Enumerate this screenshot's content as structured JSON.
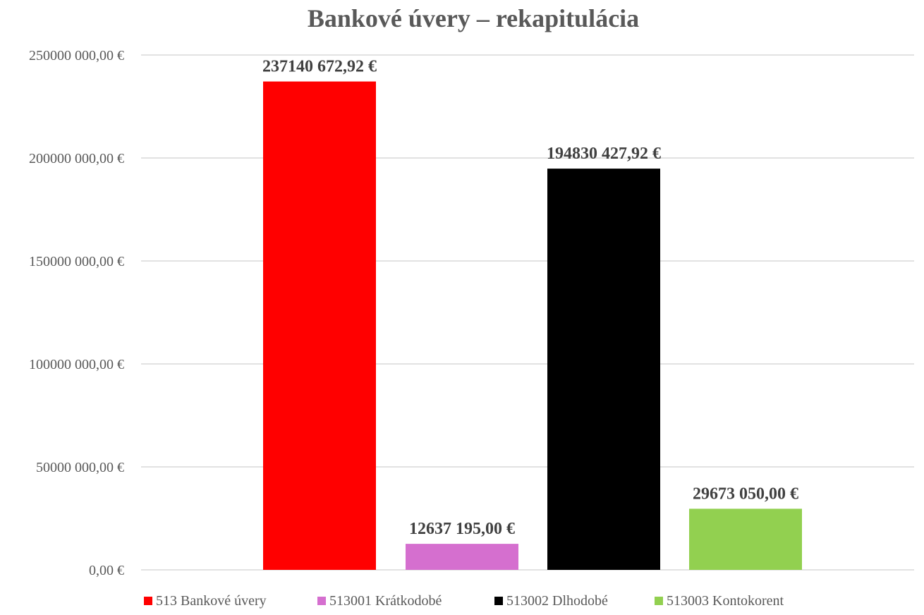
{
  "chart_data": {
    "type": "bar",
    "title": "Bankové úvery – rekapitulácia",
    "xlabel": "",
    "ylabel": "",
    "ylim": [
      0,
      250000000
    ],
    "yticks": [
      0,
      50000000,
      100000000,
      150000000,
      200000000,
      250000000
    ],
    "ytick_labels": [
      "0,00 €",
      "50000 000,00 €",
      "100000 000,00 €",
      "150000 000,00 €",
      "200000 000,00 €",
      "250000 000,00 €"
    ],
    "grid": true,
    "legend_position": "bottom",
    "series": [
      {
        "name": "513 Bankové úvery",
        "value": 237140672.92,
        "label": "237140 672,92 €",
        "color": "#ff0000"
      },
      {
        "name": "513001 Krátkodobé",
        "value": 12637195.0,
        "label": "12637 195,00 €",
        "color": "#d56fcf"
      },
      {
        "name": "513002 Dlhodobé",
        "value": 194830427.92,
        "label": "194830 427,92 €",
        "color": "#000000"
      },
      {
        "name": "513003 Kontokorent",
        "value": 29673050.0,
        "label": "29673 050,00 €",
        "color": "#92d050"
      }
    ]
  }
}
